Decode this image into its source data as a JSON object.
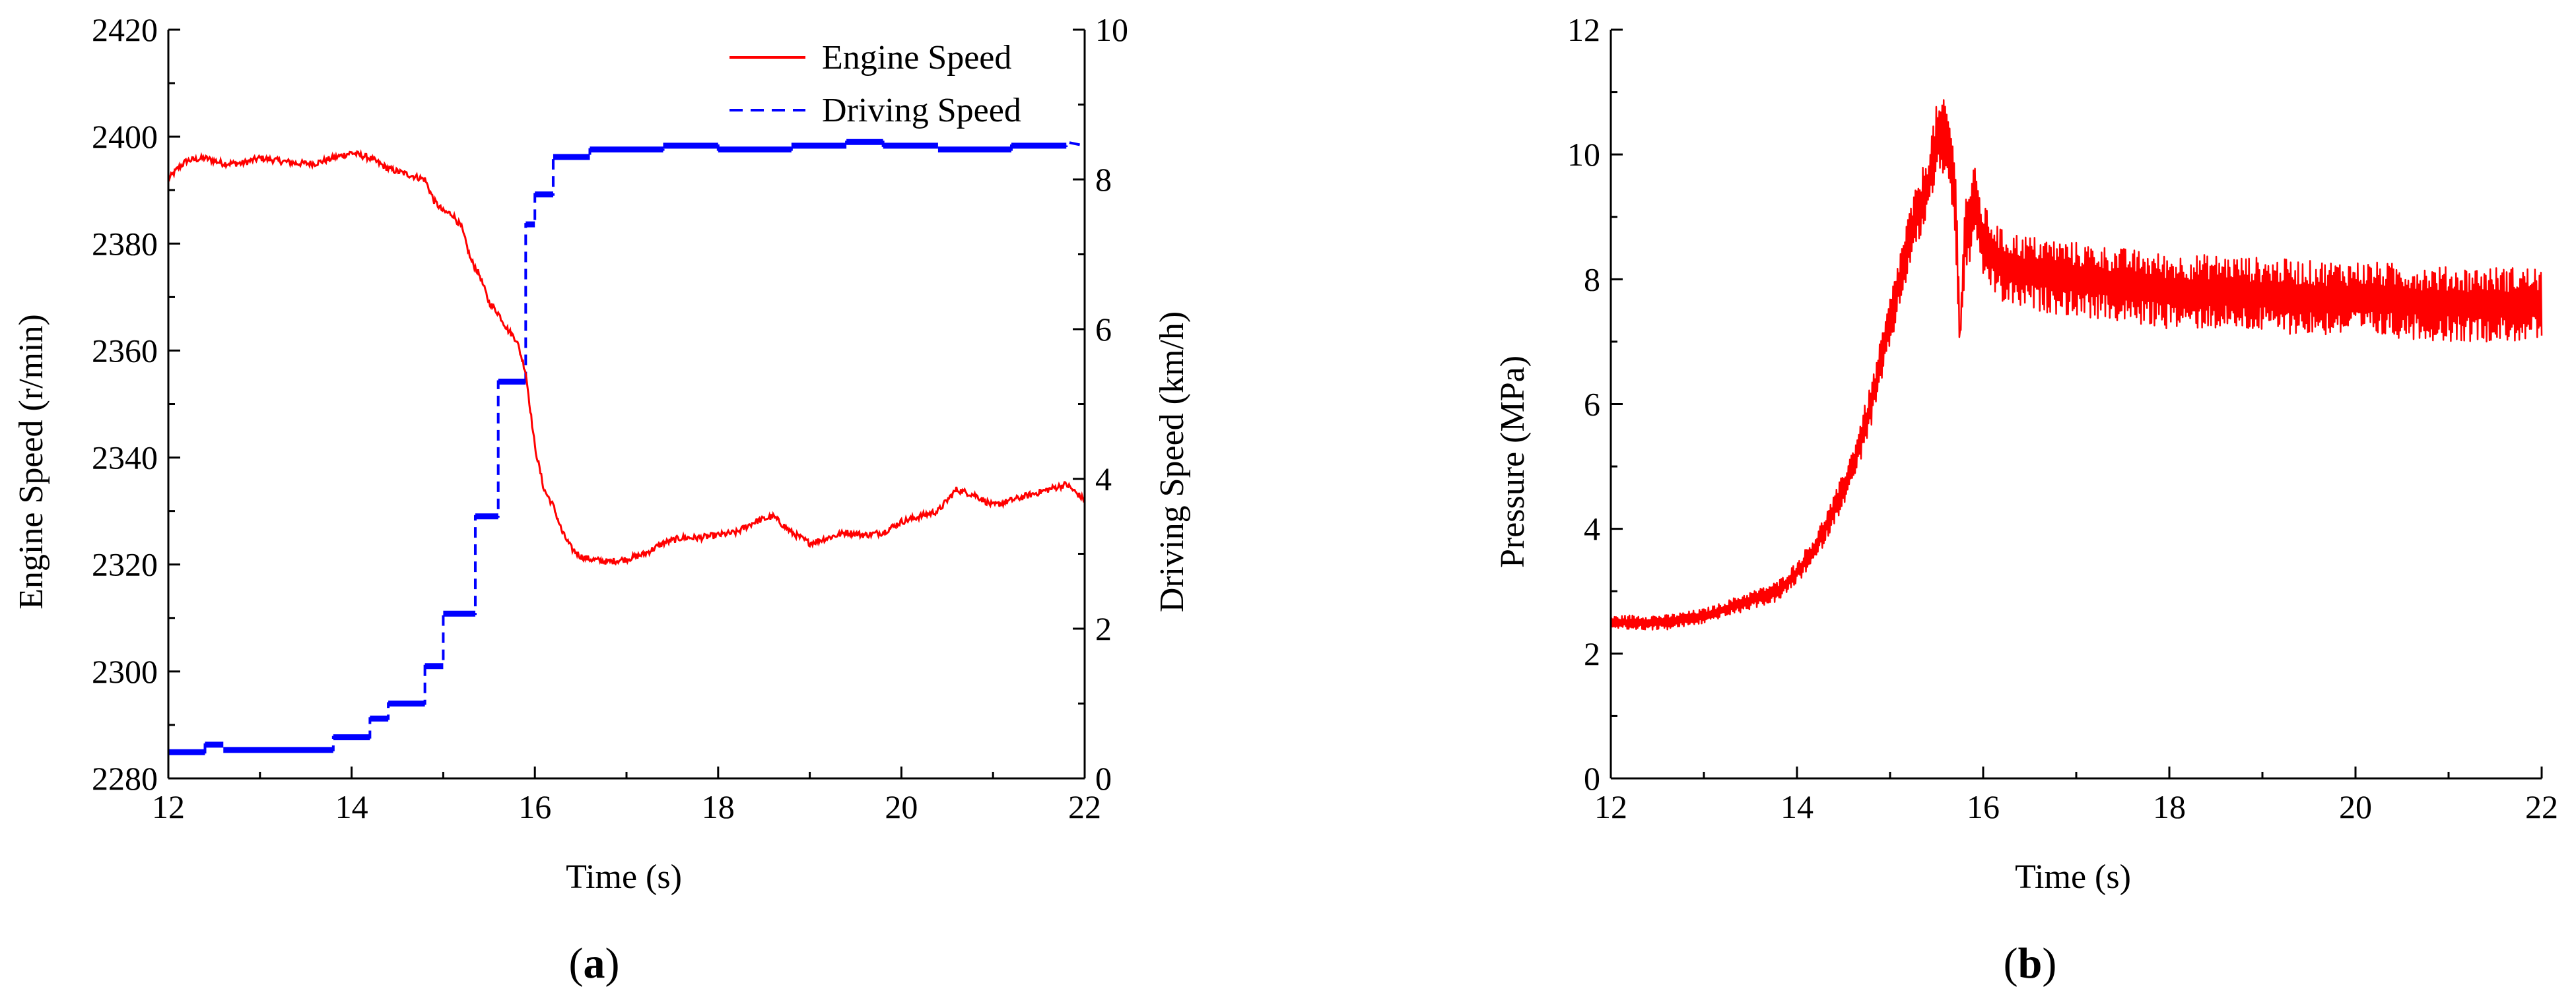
{
  "colors": {
    "engine": "#ff0000",
    "driving": "#0000ff",
    "pressure": "#ff0000",
    "axis": "#000000"
  },
  "chart_data": [
    {
      "type": "line",
      "panel_label": {
        "open": "(",
        "letter": "a",
        "close": ")"
      },
      "xlabel": "Time (s)",
      "ylabel_left": "Engine Speed (r/min)",
      "ylabel_right": "Driving Speed (km/h)",
      "xlim": [
        12,
        22
      ],
      "ylim_left": [
        2280,
        2420
      ],
      "ylim_right": [
        0,
        10
      ],
      "xticks": [
        12,
        14,
        16,
        18,
        20,
        22
      ],
      "yticks_left": [
        2280,
        2300,
        2320,
        2340,
        2360,
        2380,
        2400,
        2420
      ],
      "yticks_right": [
        0,
        2,
        4,
        6,
        8,
        10
      ],
      "legend": [
        "Engine Speed",
        "Driving Speed"
      ],
      "series": [
        {
          "name": "Engine Speed",
          "axis": "left",
          "style": "solid",
          "x": [
            12.0,
            12.1,
            12.2,
            12.4,
            12.6,
            12.8,
            13.0,
            13.2,
            13.4,
            13.6,
            13.8,
            14.0,
            14.2,
            14.4,
            14.6,
            14.8,
            14.9,
            15.0,
            15.1,
            15.2,
            15.3,
            15.4,
            15.5,
            15.6,
            15.7,
            15.8,
            15.9,
            16.0,
            16.05,
            16.1,
            16.2,
            16.3,
            16.4,
            16.5,
            16.6,
            16.8,
            17.0,
            17.2,
            17.4,
            17.6,
            17.8,
            18.0,
            18.2,
            18.4,
            18.6,
            18.8,
            19.0,
            19.2,
            19.4,
            19.6,
            19.8,
            20.0,
            20.2,
            20.4,
            20.6,
            20.8,
            21.0,
            21.2,
            21.4,
            21.6,
            21.8,
            22.0
          ],
          "y": [
            2392,
            2394,
            2395.5,
            2396,
            2395,
            2395,
            2396,
            2395.5,
            2395,
            2395,
            2396,
            2397,
            2396,
            2394,
            2393,
            2392,
            2388,
            2386,
            2385.5,
            2383,
            2377,
            2374,
            2369,
            2367,
            2364,
            2362,
            2356,
            2342,
            2338,
            2334,
            2331,
            2326,
            2323,
            2321.5,
            2321,
            2320.5,
            2321,
            2322,
            2324,
            2325,
            2325,
            2325.5,
            2326,
            2328,
            2329,
            2326,
            2324,
            2325,
            2326,
            2325.5,
            2326,
            2328,
            2329,
            2330,
            2334,
            2333,
            2331,
            2332,
            2333,
            2334,
            2335,
            2332
          ]
        },
        {
          "name": "Driving Speed",
          "axis": "right",
          "style": "dashed",
          "x": [
            12.0,
            12.4,
            12.4,
            12.6,
            12.6,
            13.8,
            13.8,
            14.2,
            14.2,
            14.4,
            14.4,
            14.8,
            14.8,
            15.0,
            15.0,
            15.35,
            15.35,
            15.6,
            15.6,
            15.9,
            15.9,
            16.0,
            16.0,
            16.2,
            16.2,
            16.6,
            16.6,
            17.4,
            17.4,
            18.0,
            18.0,
            18.8,
            18.8,
            19.4,
            19.4,
            19.8,
            19.8,
            20.4,
            20.4,
            21.2,
            21.2,
            21.8,
            21.8,
            22.0
          ],
          "y": [
            0.35,
            0.35,
            0.45,
            0.45,
            0.38,
            0.38,
            0.55,
            0.55,
            0.8,
            0.8,
            1.0,
            1.0,
            1.5,
            1.5,
            2.2,
            2.2,
            3.5,
            3.5,
            5.3,
            5.3,
            7.4,
            7.4,
            7.8,
            7.8,
            8.3,
            8.3,
            8.4,
            8.4,
            8.45,
            8.45,
            8.4,
            8.4,
            8.45,
            8.45,
            8.5,
            8.5,
            8.45,
            8.45,
            8.4,
            8.4,
            8.45,
            8.45,
            8.5,
            8.45
          ]
        }
      ]
    },
    {
      "type": "line",
      "panel_label": {
        "open": "(",
        "letter": "b",
        "close": ")"
      },
      "xlabel": "Time (s)",
      "ylabel": "Pressure (MPa)",
      "xlim": [
        12,
        22
      ],
      "ylim": [
        0,
        12
      ],
      "xticks": [
        12,
        14,
        16,
        18,
        20,
        22
      ],
      "yticks": [
        0,
        2,
        4,
        6,
        8,
        10,
        12
      ],
      "series": [
        {
          "name": "Pressure",
          "style": "solid",
          "x": [
            12.0,
            12.2,
            12.4,
            12.6,
            12.8,
            13.0,
            13.2,
            13.4,
            13.6,
            13.8,
            14.0,
            14.2,
            14.4,
            14.6,
            14.8,
            15.0,
            15.2,
            15.4,
            15.5,
            15.6,
            15.7,
            15.75,
            15.8,
            15.9,
            16.0,
            16.2,
            16.5,
            17.0,
            17.5,
            18.0,
            18.5,
            19.0,
            19.5,
            20.0,
            20.5,
            21.0,
            21.5,
            22.0
          ],
          "y": [
            2.5,
            2.5,
            2.5,
            2.5,
            2.55,
            2.6,
            2.7,
            2.8,
            2.9,
            3.0,
            3.3,
            3.7,
            4.3,
            5.0,
            6.0,
            7.3,
            8.6,
            9.5,
            10.2,
            10.3,
            9.4,
            7.0,
            8.6,
            9.2,
            8.6,
            8.2,
            8.1,
            8.0,
            7.9,
            7.8,
            7.8,
            7.75,
            7.7,
            7.7,
            7.65,
            7.6,
            7.6,
            7.6
          ],
          "noise_amplitude": [
            0.08,
            0.1,
            0.1,
            0.1,
            0.1,
            0.1,
            0.1,
            0.12,
            0.12,
            0.14,
            0.15,
            0.18,
            0.2,
            0.25,
            0.3,
            0.35,
            0.4,
            0.45,
            0.5,
            0.5,
            0.6,
            0.3,
            0.6,
            0.55,
            0.5,
            0.5,
            0.5,
            0.5,
            0.5,
            0.5,
            0.5,
            0.5,
            0.5,
            0.5,
            0.5,
            0.5,
            0.5,
            0.5
          ]
        }
      ]
    }
  ]
}
